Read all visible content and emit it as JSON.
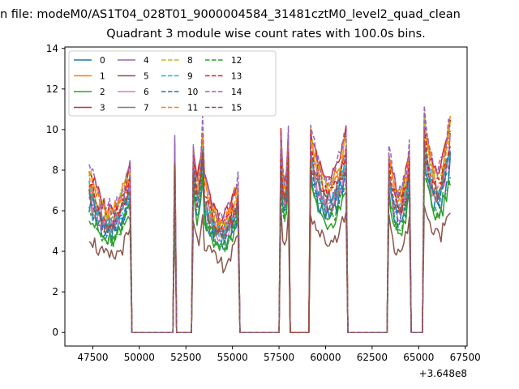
{
  "figure": {
    "suptitle": "n file: modeM0/AS1T04_028T01_9000004584_31481cztM0_level2_quad_clean"
  },
  "chart_data": {
    "type": "line",
    "title": "Quadrant 3 module wise count rates with 100.0s bins.",
    "xlabel": "",
    "ylabel": "",
    "x_offset_label": "+3.648e8",
    "xlim": [
      46000,
      67600
    ],
    "ylim": [
      -0.67,
      14.07
    ],
    "xticks": [
      47500,
      50000,
      52500,
      55000,
      57500,
      60000,
      62500,
      65000,
      67500
    ],
    "xtick_labels": [
      "47500",
      "50000",
      "52500",
      "55000",
      "57500",
      "60000",
      "62500",
      "65000",
      "67500"
    ],
    "yticks": [
      0,
      2,
      4,
      6,
      8,
      10,
      12,
      14
    ],
    "ytick_labels": [
      "0",
      "2",
      "4",
      "6",
      "8",
      "10",
      "12",
      "14"
    ],
    "grid": false,
    "legend_position": "top-left",
    "legend_columns": 4,
    "segments": [
      {
        "start": 47300,
        "end": 49500,
        "base": 7.4
      },
      {
        "start": 51900,
        "end": 51900,
        "base": 8.6
      },
      {
        "start": 52850,
        "end": 53400,
        "base": 9.2
      },
      {
        "start": 53500,
        "end": 55300,
        "base": 6.8
      },
      {
        "start": 57600,
        "end": 58000,
        "base": 8.8
      },
      {
        "start": 59200,
        "end": 61100,
        "base": 9.0
      },
      {
        "start": 63400,
        "end": 64500,
        "base": 8.2
      },
      {
        "start": 65300,
        "end": 66700,
        "base": 9.6
      }
    ],
    "series": [
      {
        "name": "0",
        "color": "#1f77b4",
        "dash": "solid",
        "scale": 0.86
      },
      {
        "name": "1",
        "color": "#ff7f0e",
        "dash": "solid",
        "scale": 1.08
      },
      {
        "name": "2",
        "color": "#2ca02c",
        "dash": "solid",
        "scale": 0.8
      },
      {
        "name": "3",
        "color": "#d62728",
        "dash": "solid",
        "scale": 1.1
      },
      {
        "name": "4",
        "color": "#9467bd",
        "dash": "solid",
        "scale": 0.98
      },
      {
        "name": "5",
        "color": "#8c564b",
        "dash": "solid",
        "scale": 0.66
      },
      {
        "name": "6",
        "color": "#e377c2",
        "dash": "solid",
        "scale": 0.92
      },
      {
        "name": "7",
        "color": "#7f7f7f",
        "dash": "solid",
        "scale": 0.95
      },
      {
        "name": "8",
        "color": "#bcbd22",
        "dash": "dashed",
        "scale": 1.06
      },
      {
        "name": "9",
        "color": "#17becf",
        "dash": "dashed",
        "scale": 0.96
      },
      {
        "name": "10",
        "color": "#1f77b4",
        "dash": "dashed",
        "scale": 0.9
      },
      {
        "name": "11",
        "color": "#ff7f0e",
        "dash": "dashed",
        "scale": 1.04
      },
      {
        "name": "12",
        "color": "#2ca02c",
        "dash": "dashed",
        "scale": 0.84
      },
      {
        "name": "13",
        "color": "#d62728",
        "dash": "dashed",
        "scale": 1.0
      },
      {
        "name": "14",
        "color": "#9467bd",
        "dash": "dashed",
        "scale": 1.12
      },
      {
        "name": "15",
        "color": "#8c564b",
        "dash": "dashed",
        "scale": 0.94
      }
    ]
  }
}
